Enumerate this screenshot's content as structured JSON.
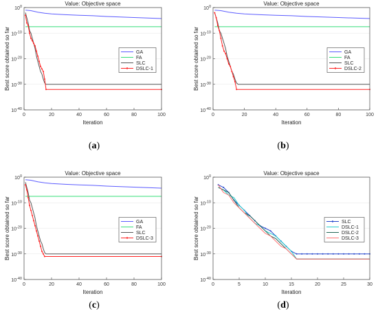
{
  "figure": {
    "captions": [
      {
        "open": "(",
        "letter": "a",
        "close": ")"
      },
      {
        "open": "(",
        "letter": "b",
        "close": ")"
      },
      {
        "open": "(",
        "letter": "c",
        "close": ")"
      },
      {
        "open": "(",
        "letter": "d",
        "close": ")"
      }
    ]
  },
  "chart_data": [
    {
      "type": "line",
      "title": "Value: Objective space",
      "xlabel": "Iteration",
      "ylabel": "Best score obtained so far",
      "xlim": [
        0,
        100
      ],
      "ylim_log10": [
        -40,
        0
      ],
      "y_scale": "log",
      "xticks": [
        "0",
        "20",
        "40",
        "60",
        "80",
        "100"
      ],
      "yticks": [
        "10^0",
        "10^-10",
        "10^-20",
        "10^-30",
        "10^-40"
      ],
      "legend_position": "center-right",
      "colors": {
        "GA": "#5b5bff",
        "FA": "#33dd77",
        "SLC": "#555555",
        "DSLC-1": "#ff2020"
      },
      "series": [
        {
          "name": "GA",
          "x": [
            1,
            5,
            10,
            15,
            20,
            30,
            40,
            50,
            60,
            70,
            80,
            90,
            100
          ],
          "log10_y": [
            -1,
            -1.2,
            -1.8,
            -2.2,
            -2.5,
            -2.8,
            -3.0,
            -3.2,
            -3.5,
            -3.7,
            -3.9,
            -4.1,
            -4.3
          ]
        },
        {
          "name": "FA",
          "x": [
            1,
            100
          ],
          "log10_y": [
            -7.5,
            -7.5
          ]
        },
        {
          "name": "SLC",
          "x": [
            1,
            2,
            3,
            4,
            5,
            6,
            7,
            8,
            9,
            10,
            11,
            12,
            13,
            14,
            15,
            16,
            100
          ],
          "log10_y": [
            -2,
            -4,
            -6,
            -9,
            -10,
            -12,
            -14,
            -16,
            -19,
            -21,
            -23,
            -25,
            -26,
            -28,
            -29.5,
            -30,
            -30
          ]
        },
        {
          "name": "DSLC-1",
          "x": [
            1,
            2,
            3,
            4,
            5,
            6,
            7,
            8,
            9,
            10,
            11,
            12,
            13,
            14,
            15,
            16,
            100
          ],
          "log10_y": [
            -3,
            -6,
            -7,
            -10,
            -12,
            -13,
            -14,
            -15,
            -17,
            -19,
            -21,
            -23,
            -24,
            -25,
            -28,
            -32,
            -32
          ]
        }
      ]
    },
    {
      "type": "line",
      "title": "Value: Objective space",
      "xlabel": "Iteration",
      "ylabel": "Best score obtained so far",
      "xlim": [
        0,
        100
      ],
      "ylim_log10": [
        -40,
        0
      ],
      "y_scale": "log",
      "xticks": [
        "0",
        "20",
        "40",
        "60",
        "80",
        "100"
      ],
      "yticks": [
        "10^0",
        "10^-10",
        "10^-20",
        "10^-30",
        "10^-40"
      ],
      "legend_position": "center-right",
      "colors": {
        "GA": "#5b5bff",
        "FA": "#33dd77",
        "SLC": "#555555",
        "DSLC-2": "#ff2020"
      },
      "series": [
        {
          "name": "GA",
          "x": [
            1,
            5,
            10,
            15,
            20,
            30,
            40,
            50,
            60,
            70,
            80,
            90,
            100
          ],
          "log10_y": [
            -1,
            -1.2,
            -1.8,
            -2.2,
            -2.5,
            -2.8,
            -3.0,
            -3.2,
            -3.5,
            -3.7,
            -3.9,
            -4.1,
            -4.3
          ]
        },
        {
          "name": "FA",
          "x": [
            1,
            100
          ],
          "log10_y": [
            -7.5,
            -7.5
          ]
        },
        {
          "name": "SLC",
          "x": [
            1,
            2,
            3,
            4,
            5,
            6,
            7,
            8,
            9,
            10,
            11,
            12,
            13,
            14,
            15,
            16,
            100
          ],
          "log10_y": [
            -2,
            -4,
            -6,
            -9,
            -10,
            -12,
            -14,
            -16,
            -19,
            -21,
            -23,
            -25,
            -26,
            -28,
            -29.5,
            -30,
            -30
          ]
        },
        {
          "name": "DSLC-2",
          "x": [
            1,
            2,
            3,
            4,
            5,
            6,
            7,
            8,
            9,
            10,
            11,
            12,
            13,
            14,
            15,
            100
          ],
          "log10_y": [
            -2,
            -4,
            -7,
            -9,
            -12,
            -15,
            -17,
            -18,
            -20,
            -22,
            -23,
            -25,
            -27,
            -29,
            -32,
            -32
          ]
        }
      ]
    },
    {
      "type": "line",
      "title": "Value: Objective space",
      "xlabel": "Iteration",
      "ylabel": "Best score obtained so far",
      "xlim": [
        0,
        100
      ],
      "ylim_log10": [
        -40,
        0
      ],
      "y_scale": "log",
      "xticks": [
        "0",
        "20",
        "40",
        "60",
        "80",
        "100"
      ],
      "yticks": [
        "10^0",
        "10^-10",
        "10^-20",
        "10^-30",
        "10^-40"
      ],
      "legend_position": "center-right",
      "colors": {
        "GA": "#5b5bff",
        "FA": "#33dd77",
        "SLC": "#555555",
        "DSLC-3": "#ff2020"
      },
      "series": [
        {
          "name": "GA",
          "x": [
            1,
            5,
            10,
            15,
            20,
            30,
            40,
            50,
            60,
            70,
            80,
            90,
            100
          ],
          "log10_y": [
            -1,
            -1.2,
            -1.8,
            -2.2,
            -2.5,
            -2.8,
            -3.0,
            -3.2,
            -3.5,
            -3.7,
            -3.9,
            -4.1,
            -4.3
          ]
        },
        {
          "name": "FA",
          "x": [
            1,
            100
          ],
          "log10_y": [
            -7.5,
            -7.5
          ]
        },
        {
          "name": "SLC",
          "x": [
            1,
            2,
            3,
            4,
            5,
            6,
            7,
            8,
            9,
            10,
            11,
            12,
            13,
            14,
            15,
            16,
            100
          ],
          "log10_y": [
            -2,
            -4,
            -6,
            -9,
            -10,
            -12,
            -14,
            -16,
            -19,
            -21,
            -23,
            -25,
            -26,
            -28,
            -29.5,
            -30,
            -30
          ]
        },
        {
          "name": "DSLC-3",
          "x": [
            1,
            2,
            3,
            4,
            5,
            6,
            7,
            8,
            9,
            10,
            11,
            12,
            13,
            14,
            15,
            100
          ],
          "log10_y": [
            -3,
            -5,
            -8,
            -11,
            -13,
            -15,
            -17,
            -19,
            -21,
            -23,
            -25,
            -27,
            -29,
            -30,
            -31,
            -31
          ]
        }
      ]
    },
    {
      "type": "line",
      "title": "Value: Objective space",
      "xlabel": "Iteration",
      "ylabel": "Best score obtained so far",
      "xlim": [
        0,
        30
      ],
      "ylim_log10": [
        -40,
        0
      ],
      "y_scale": "log",
      "xticks": [
        "0",
        "5",
        "10",
        "15",
        "20",
        "25",
        "30"
      ],
      "yticks": [
        "10^0",
        "10^-10",
        "10^-20",
        "10^-30",
        "10^-40"
      ],
      "legend_position": "center-right",
      "colors": {
        "SLC": "#2244cc",
        "DSLC-1": "#22cccc",
        "DSLC-2": "#226655",
        "DSLC-3": "#ff7070"
      },
      "series": [
        {
          "name": "SLC",
          "x": [
            1,
            2,
            3,
            4,
            5,
            6,
            7,
            8,
            9,
            10,
            11,
            12,
            13,
            14,
            15,
            16,
            17,
            18,
            19,
            20,
            21,
            22,
            23,
            24,
            25,
            26,
            27,
            28,
            29,
            30
          ],
          "log10_y": [
            -3,
            -4,
            -6,
            -9,
            -11,
            -13,
            -15,
            -17,
            -19,
            -20,
            -21,
            -23,
            -25,
            -27,
            -29,
            -30,
            -30,
            -30,
            -30,
            -30,
            -30,
            -30,
            -30,
            -30,
            -30,
            -30,
            -30,
            -30,
            -30,
            -30
          ]
        },
        {
          "name": "DSLC-1",
          "x": [
            1,
            2,
            3,
            4,
            5,
            6,
            7,
            8,
            9,
            10,
            11,
            12,
            13,
            14,
            15,
            16,
            30
          ],
          "log10_y": [
            -4,
            -5,
            -7,
            -8,
            -11,
            -13,
            -16,
            -18,
            -19,
            -21,
            -22,
            -23,
            -25,
            -27,
            -29,
            -32,
            -32
          ]
        },
        {
          "name": "DSLC-2",
          "x": [
            1,
            2,
            3,
            4,
            5,
            6,
            7,
            8,
            9,
            10,
            11,
            12,
            13,
            14,
            15,
            16,
            30
          ],
          "log10_y": [
            -4,
            -5,
            -6,
            -9,
            -12,
            -14,
            -15,
            -17,
            -19,
            -21,
            -23,
            -24,
            -26,
            -28,
            -30,
            -32,
            -32
          ]
        },
        {
          "name": "DSLC-3",
          "x": [
            1,
            2,
            3,
            4,
            5,
            6,
            7,
            8,
            9,
            10,
            11,
            12,
            13,
            14,
            15,
            16,
            30
          ],
          "log10_y": [
            -3,
            -6,
            -7,
            -10,
            -12,
            -14,
            -16,
            -18,
            -20,
            -22,
            -23,
            -25,
            -27,
            -28,
            -30,
            -32,
            -32
          ]
        }
      ]
    }
  ]
}
